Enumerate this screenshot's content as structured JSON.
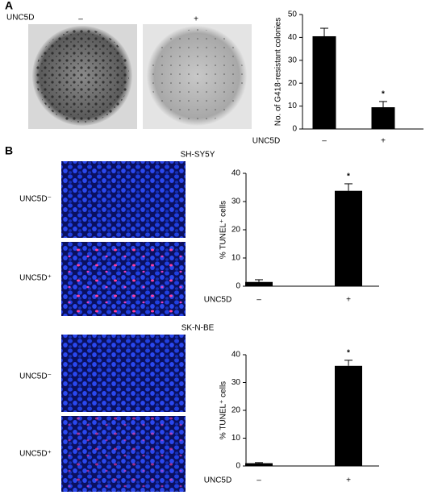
{
  "panel_a": {
    "label": "A",
    "condition": "UNC5D",
    "images": [
      "–",
      "+"
    ]
  },
  "panel_b": {
    "label": "B",
    "groups": [
      {
        "cell_line": "SH-SY5Y",
        "images": [
          "UNC5D⁻",
          "UNC5D⁺"
        ]
      },
      {
        "cell_line": "SK-N-BE",
        "images": [
          "UNC5D⁻",
          "UNC5D⁺"
        ]
      }
    ]
  },
  "chart_data": [
    {
      "type": "bar",
      "y_label": "No. of G418-resistant colonies",
      "x_label": "UNC5D",
      "categories": [
        "–",
        "+"
      ],
      "values": [
        40.5,
        9.5
      ],
      "errors": [
        3.5,
        2.5
      ],
      "color": "#000000",
      "ylim": [
        0,
        50
      ],
      "yticks": [
        0,
        10,
        20,
        30,
        40,
        50
      ],
      "annotations": [
        {
          "x": "+",
          "text": "*"
        }
      ]
    },
    {
      "type": "bar",
      "y_label": "% TUNEL⁺ cells",
      "x_label": "UNC5D",
      "categories": [
        "–",
        "+"
      ],
      "values": [
        1.5,
        33.8
      ],
      "errors": [
        0.8,
        2.5
      ],
      "color": "#000000",
      "ylim": [
        0,
        40
      ],
      "yticks": [
        0,
        10,
        20,
        30,
        40
      ],
      "annotations": [
        {
          "x": "+",
          "text": "*"
        }
      ]
    },
    {
      "type": "bar",
      "y_label": "% TUNEL⁺ cells",
      "x_label": "UNC5D",
      "categories": [
        "–",
        "+"
      ],
      "values": [
        1.0,
        36.0
      ],
      "errors": [
        0.2,
        2.0
      ],
      "color": "#000000",
      "ylim": [
        0,
        40
      ],
      "yticks": [
        0,
        10,
        20,
        30,
        40
      ],
      "annotations": [
        {
          "x": "+",
          "text": "*"
        }
      ]
    }
  ]
}
